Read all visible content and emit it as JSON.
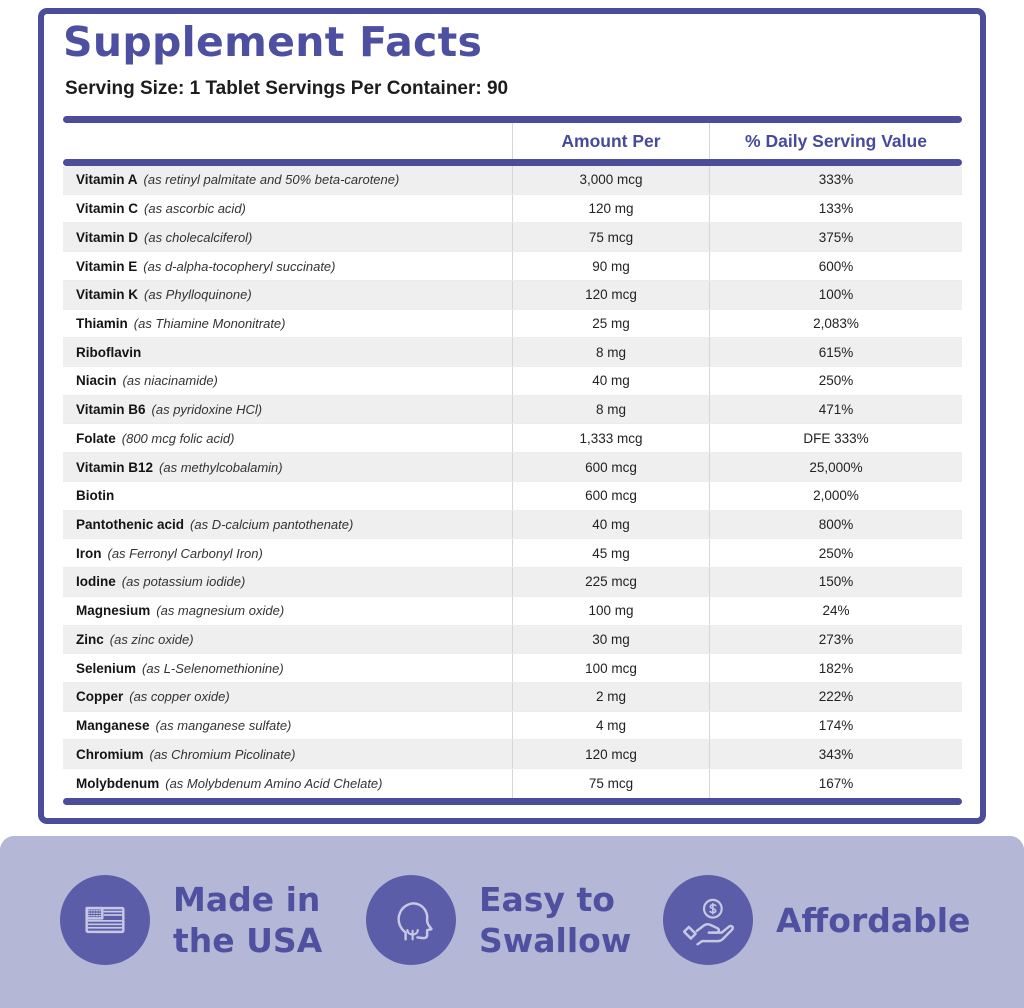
{
  "title": "Supplement Facts",
  "serving_info": "Serving Size: 1 Tablet Servings Per Container: 90",
  "table": {
    "headers": {
      "amount": "Amount Per",
      "daily": "% Daily Serving Value"
    },
    "rows": [
      {
        "name": "Vitamin A",
        "detail": "(as retinyl palmitate and 50% beta-carotene)",
        "amount": "3,000 mcg",
        "daily": "333%"
      },
      {
        "name": "Vitamin C",
        "detail": "(as ascorbic acid)",
        "amount": "120 mg",
        "daily": "133%"
      },
      {
        "name": "Vitamin D",
        "detail": "(as cholecalciferol)",
        "amount": "75 mcg",
        "daily": "375%"
      },
      {
        "name": "Vitamin E",
        "detail": "(as d-alpha-tocopheryl succinate)",
        "amount": "90 mg",
        "daily": "600%"
      },
      {
        "name": "Vitamin K",
        "detail": "(as Phylloquinone)",
        "amount": "120 mcg",
        "daily": "100%"
      },
      {
        "name": "Thiamin",
        "detail": "(as Thiamine Mononitrate)",
        "amount": "25 mg",
        "daily": "2,083%"
      },
      {
        "name": "Riboflavin",
        "detail": "",
        "amount": "8 mg",
        "daily": "615%"
      },
      {
        "name": "Niacin",
        "detail": "(as niacinamide)",
        "amount": "40 mg",
        "daily": "250%"
      },
      {
        "name": "Vitamin B6",
        "detail": "(as pyridoxine HCl)",
        "amount": "8 mg",
        "daily": "471%"
      },
      {
        "name": "Folate",
        "detail": "(800 mcg folic acid)",
        "amount": "1,333 mcg",
        "daily": "DFE 333%"
      },
      {
        "name": "Vitamin B12",
        "detail": "(as methylcobalamin)",
        "amount": "600 mcg",
        "daily": "25,000%"
      },
      {
        "name": "Biotin",
        "detail": "",
        "amount": "600 mcg",
        "daily": "2,000%"
      },
      {
        "name": "Pantothenic acid",
        "detail": "(as D-calcium pantothenate)",
        "amount": "40 mg",
        "daily": "800%"
      },
      {
        "name": "Iron",
        "detail": "(as Ferronyl Carbonyl Iron)",
        "amount": "45 mg",
        "daily": "250%"
      },
      {
        "name": "Iodine",
        "detail": "(as potassium iodide)",
        "amount": "225 mcg",
        "daily": "150%"
      },
      {
        "name": "Magnesium",
        "detail": "(as magnesium oxide)",
        "amount": "100 mg",
        "daily": "24%"
      },
      {
        "name": "Zinc",
        "detail": "(as zinc oxide)",
        "amount": "30 mg",
        "daily": "273%"
      },
      {
        "name": "Selenium",
        "detail": "(as L-Selenomethionine)",
        "amount": "100 mcg",
        "daily": "182%"
      },
      {
        "name": "Copper",
        "detail": "(as copper oxide)",
        "amount": "2 mg",
        "daily": "222%"
      },
      {
        "name": "Manganese",
        "detail": "(as manganese sulfate)",
        "amount": "4 mg",
        "daily": "174%"
      },
      {
        "name": "Chromium",
        "detail": "(as Chromium Picolinate)",
        "amount": "120 mcg",
        "daily": "343%"
      },
      {
        "name": "Molybdenum",
        "detail": "(as Molybdenum Amino Acid Chelate)",
        "amount": "75 mcg",
        "daily": "167%"
      }
    ]
  },
  "footer": {
    "badges": [
      {
        "icon": "usa-flag-icon",
        "line1": "Made in",
        "line2": "the USA"
      },
      {
        "icon": "swallow-head-icon",
        "line1": "Easy to",
        "line2": "Swallow"
      },
      {
        "icon": "hand-coin-icon",
        "line1": "Affordable",
        "line2": ""
      }
    ]
  },
  "colors": {
    "accent_purple": "#4B4D9B",
    "footer_background": "#B5B7D6",
    "badge_circle": "#5B5DA8",
    "row_stripe": "#EFEFEF"
  }
}
